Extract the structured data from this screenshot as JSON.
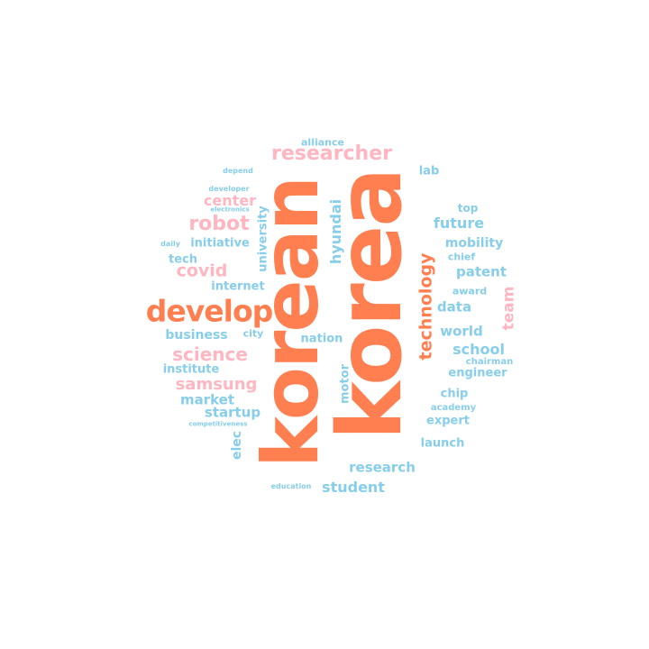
{
  "colors": {
    "orange": "#ff7f50",
    "blue": "#87ceeb",
    "pink": "#ffb6c1",
    "background": "#ffffff"
  },
  "words": {
    "korea": "korea",
    "korean": "korean",
    "develop": "develop",
    "researcher": "researcher",
    "technology": "technology",
    "robot": "robot",
    "science": "science",
    "samsung": "samsung",
    "covid": "covid",
    "center": "center",
    "team": "team",
    "future": "future",
    "research": "research",
    "student": "student",
    "startup": "startup",
    "market": "market",
    "school": "school",
    "patent": "patent",
    "world": "world",
    "business": "business",
    "hyundai": "hyundai",
    "university": "university",
    "motor": "motor",
    "elec": "elec",
    "data": "data",
    "mobility": "mobility",
    "engineer": "engineer",
    "institute": "institute",
    "initiative": "initiative",
    "internet": "internet",
    "nation": "nation",
    "launch": "launch",
    "chip": "chip",
    "expert": "expert",
    "tech": "tech",
    "lab": "lab",
    "top": "top",
    "alliance": "alliance",
    "award": "award",
    "academy": "academy",
    "chairman": "chairman",
    "chief": "chief",
    "city": "city",
    "depend": "depend",
    "developer": "developer",
    "electronics": "electronics",
    "daily": "daily",
    "competitiveness": "competitiveness",
    "education": "education"
  }
}
